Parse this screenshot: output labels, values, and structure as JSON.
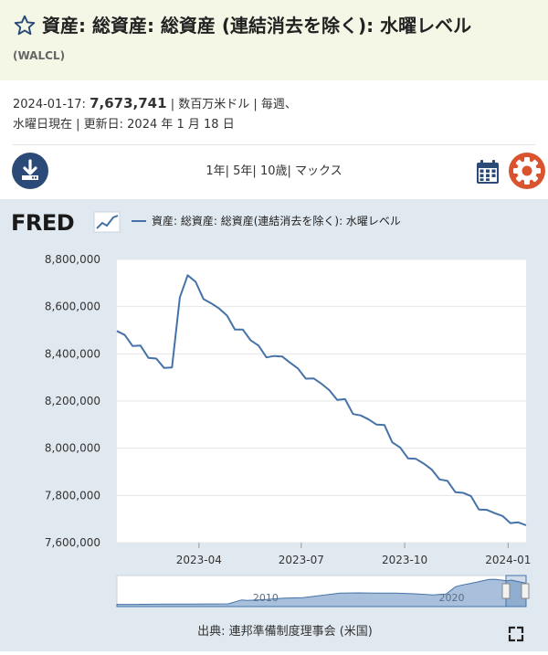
{
  "header": {
    "title": "資産: 総資産: 総資産 (連結消去を除く): 水曜レベル",
    "series_id": "(WALCL)"
  },
  "meta": {
    "date": "2024-01-17:",
    "value": "7,673,741",
    "line1_rest": "| 数百万米ドル | 毎週、",
    "line2": "水曜日現在 | 更新日: 2024 年 1 月 18 日"
  },
  "toolbar": {
    "range_1y": "1年",
    "range_5y": "5年",
    "range_10y": "10歳",
    "range_max": "マックス",
    "sep": "|"
  },
  "chart_footer": {
    "source": "出典: 連邦準備制度理事会 (米国)"
  },
  "icons": {
    "download": "download-icon",
    "calendar": "calendar-icon",
    "settings": "gear-icon",
    "fullscreen": "fullscreen-icon",
    "favorite": "star-icon"
  },
  "colors": {
    "line": "#4572a7",
    "header_bg": "#f4f6e6",
    "panel_bg": "#e1e9f0",
    "download_btn": "#2b4a77",
    "gear": "#d9532f",
    "calendar": "#2b4a77"
  },
  "chart_data": {
    "type": "line",
    "logo": "FRED",
    "legend": "資産: 総資産: 総資産(連結消去を除く): 水曜レベル",
    "ylim": [
      7600000,
      8800000
    ],
    "yticks": [
      8800000,
      8600000,
      8400000,
      8200000,
      8000000,
      7800000,
      7600000
    ],
    "ytick_labels": [
      "8,800,000",
      "8,600,000",
      "8,400,000",
      "8,200,000",
      "8,000,000",
      "7,800,000",
      "7,600,000"
    ],
    "xtick_labels": [
      "2023-04",
      "2023-07",
      "2023-10",
      "2024-01"
    ],
    "navigator_labels": [
      "2010",
      "2020"
    ],
    "grid": true,
    "series": [
      {
        "x": [
          "2023-01-18",
          "2023-01-25",
          "2023-02-01",
          "2023-02-08",
          "2023-02-15",
          "2023-02-22",
          "2023-03-01",
          "2023-03-08",
          "2023-03-15",
          "2023-03-22",
          "2023-03-29",
          "2023-04-05",
          "2023-04-12",
          "2023-04-19",
          "2023-04-26",
          "2023-05-03",
          "2023-05-10",
          "2023-05-17",
          "2023-05-24",
          "2023-05-31",
          "2023-06-07",
          "2023-06-14",
          "2023-06-21",
          "2023-06-28",
          "2023-07-05",
          "2023-07-12",
          "2023-07-19",
          "2023-07-26",
          "2023-08-02",
          "2023-08-09",
          "2023-08-16",
          "2023-08-23",
          "2023-08-30",
          "2023-09-06",
          "2023-09-13",
          "2023-09-20",
          "2023-09-27",
          "2023-10-04",
          "2023-10-11",
          "2023-10-18",
          "2023-10-25",
          "2023-11-01",
          "2023-11-08",
          "2023-11-15",
          "2023-11-22",
          "2023-11-29",
          "2023-12-06",
          "2023-12-13",
          "2023-12-20",
          "2023-12-27",
          "2024-01-03",
          "2024-01-10",
          "2024-01-17"
        ],
        "values": [
          8497000,
          8480000,
          8433000,
          8435000,
          8383000,
          8380000,
          8340000,
          8342000,
          8639000,
          8733000,
          8705000,
          8632000,
          8614000,
          8592000,
          8562000,
          8503000,
          8503000,
          8457000,
          8435000,
          8385000,
          8391000,
          8389000,
          8363000,
          8338000,
          8295000,
          8296000,
          8273000,
          8246000,
          8205000,
          8208000,
          8145000,
          8139000,
          8122000,
          8100000,
          8098000,
          8025000,
          8003000,
          7957000,
          7955000,
          7935000,
          7910000,
          7868000,
          7862000,
          7814000,
          7811000,
          7797000,
          7740000,
          7739000,
          7725000,
          7713000,
          7683000,
          7686000,
          7673741
        ]
      }
    ],
    "navigator_series": [
      {
        "x": [
          2002,
          2003,
          2004,
          2005,
          2006,
          2007,
          2008,
          2008.7,
          2009,
          2010,
          2011,
          2012,
          2013,
          2014,
          2015,
          2016,
          2017,
          2018,
          2019,
          2019.7,
          2020.2,
          2020.5,
          2021,
          2022,
          2022.3,
          2023,
          2023.2,
          2024
        ],
        "values": [
          720000,
          730000,
          770000,
          820000,
          850000,
          880000,
          890000,
          2200000,
          2000000,
          2300000,
          2800000,
          2900000,
          3700000,
          4400000,
          4500000,
          4450000,
          4450000,
          4200000,
          3800000,
          4100000,
          6500000,
          7000000,
          7600000,
          8900000,
          8960000,
          8500000,
          8700000,
          7680000
        ]
      }
    ]
  }
}
